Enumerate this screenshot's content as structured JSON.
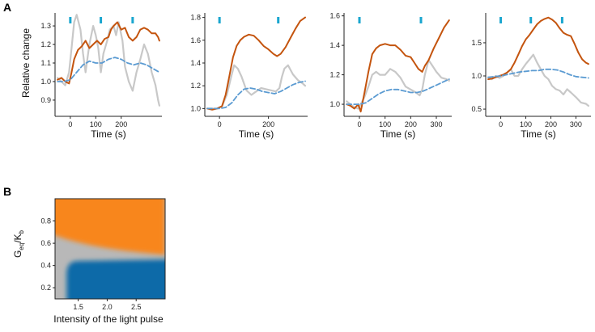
{
  "panel_a_letter": "A",
  "panel_b_letter": "B",
  "colors": {
    "measured": "#c4540e",
    "gray": "#c8c8c8",
    "model": "#5b9bd2",
    "pulse": "#1aa6cf",
    "heat_high": "#f8861c",
    "heat_low": "#0f6aa8",
    "heat_mid": "#b8b8b8"
  },
  "chart_data": [
    {
      "type": "line",
      "ylabel": "Relative change",
      "xlabel": "Time (s)",
      "xlim": [
        -60,
        360
      ],
      "ylim": [
        0.83,
        1.37
      ],
      "xticks": [
        0,
        100,
        200
      ],
      "yticks": [
        0.9,
        1.0,
        1.1,
        1.2,
        1.3
      ],
      "ytick_labels": [
        "0.9",
        "1.0",
        "1.1",
        "1.2",
        "1.3"
      ],
      "pulses": [
        0,
        120,
        245
      ],
      "series": [
        {
          "role": "gray",
          "x": [
            -50,
            -35,
            -20,
            -5,
            5,
            15,
            25,
            40,
            50,
            60,
            75,
            90,
            100,
            110,
            120,
            130,
            145,
            155,
            170,
            180,
            190,
            205,
            215,
            230,
            245,
            260,
            275,
            290,
            305,
            320,
            335,
            345,
            350
          ],
          "y": [
            1.02,
            1.0,
            0.98,
            1.05,
            1.18,
            1.32,
            1.36,
            1.28,
            1.15,
            1.05,
            1.2,
            1.3,
            1.25,
            1.18,
            1.05,
            1.15,
            1.22,
            1.28,
            1.3,
            1.25,
            1.32,
            1.22,
            1.08,
            1.0,
            0.95,
            1.05,
            1.12,
            1.2,
            1.15,
            1.05,
            0.98,
            0.9,
            0.87
          ]
        },
        {
          "role": "measured",
          "x": [
            -50,
            -35,
            -20,
            -5,
            5,
            15,
            30,
            45,
            60,
            75,
            90,
            105,
            120,
            135,
            150,
            160,
            170,
            185,
            200,
            215,
            230,
            245,
            260,
            275,
            290,
            305,
            320,
            335,
            345,
            350
          ],
          "y": [
            1.01,
            1.02,
            1.0,
            0.99,
            1.05,
            1.12,
            1.17,
            1.19,
            1.22,
            1.18,
            1.2,
            1.22,
            1.2,
            1.23,
            1.24,
            1.28,
            1.3,
            1.32,
            1.28,
            1.29,
            1.24,
            1.22,
            1.24,
            1.28,
            1.29,
            1.28,
            1.26,
            1.26,
            1.24,
            1.22
          ]
        },
        {
          "role": "model",
          "x": [
            -50,
            -25,
            0,
            25,
            50,
            75,
            100,
            125,
            150,
            175,
            200,
            225,
            250,
            275,
            300,
            325,
            350
          ],
          "y": [
            1.0,
            1.0,
            1.01,
            1.05,
            1.09,
            1.11,
            1.1,
            1.1,
            1.12,
            1.13,
            1.12,
            1.1,
            1.09,
            1.1,
            1.09,
            1.07,
            1.05
          ]
        }
      ]
    },
    {
      "type": "line",
      "xlabel": "Time (s)",
      "xlim": [
        -60,
        360
      ],
      "ylim": [
        0.96,
        1.84
      ],
      "xticks": [
        0,
        200
      ],
      "yticks": [
        1.0,
        1.2,
        1.4,
        1.6,
        1.8
      ],
      "ytick_labels": [
        "1.0",
        "1.2",
        "1.4",
        "1.6",
        "1.8"
      ],
      "pulses": [
        0,
        240
      ],
      "series": [
        {
          "role": "gray",
          "x": [
            -50,
            -30,
            -10,
            10,
            30,
            50,
            60,
            75,
            90,
            110,
            130,
            150,
            170,
            190,
            210,
            230,
            245,
            255,
            265,
            280,
            300,
            320,
            340,
            350
          ],
          "y": [
            1.0,
            1.0,
            1.0,
            1.02,
            1.12,
            1.3,
            1.38,
            1.35,
            1.28,
            1.16,
            1.12,
            1.15,
            1.18,
            1.17,
            1.16,
            1.15,
            1.18,
            1.28,
            1.35,
            1.38,
            1.3,
            1.25,
            1.22,
            1.2
          ]
        },
        {
          "role": "measured",
          "x": [
            -50,
            -30,
            -10,
            10,
            25,
            40,
            55,
            70,
            85,
            100,
            120,
            140,
            160,
            180,
            200,
            220,
            235,
            250,
            270,
            290,
            310,
            330,
            350
          ],
          "y": [
            1.0,
            0.99,
            1.0,
            1.02,
            1.12,
            1.28,
            1.45,
            1.55,
            1.6,
            1.63,
            1.65,
            1.64,
            1.6,
            1.55,
            1.52,
            1.48,
            1.46,
            1.48,
            1.54,
            1.62,
            1.7,
            1.77,
            1.8
          ]
        },
        {
          "role": "model",
          "x": [
            -50,
            -25,
            0,
            25,
            50,
            75,
            100,
            125,
            150,
            175,
            200,
            225,
            250,
            275,
            300,
            325,
            350
          ],
          "y": [
            1.0,
            1.0,
            1.0,
            1.01,
            1.05,
            1.12,
            1.17,
            1.18,
            1.17,
            1.15,
            1.14,
            1.13,
            1.15,
            1.18,
            1.21,
            1.23,
            1.24
          ]
        }
      ]
    },
    {
      "type": "line",
      "xlabel": "Time (s)",
      "xlim": [
        -60,
        360
      ],
      "ylim": [
        0.94,
        1.62
      ],
      "xticks": [
        0,
        100,
        200,
        300
      ],
      "yticks": [
        1.0,
        1.2,
        1.4,
        1.6
      ],
      "ytick_labels": [
        "1.0",
        "1.2",
        "1.4",
        "1.6"
      ],
      "pulses": [
        0,
        240
      ],
      "series": [
        {
          "role": "gray",
          "x": [
            -50,
            -35,
            -20,
            -5,
            5,
            20,
            35,
            50,
            65,
            80,
            100,
            120,
            140,
            160,
            180,
            200,
            220,
            235,
            245,
            255,
            270,
            285,
            300,
            320,
            340,
            350
          ],
          "y": [
            1.02,
            1.0,
            0.98,
            0.97,
            1.0,
            1.05,
            1.12,
            1.2,
            1.22,
            1.2,
            1.2,
            1.24,
            1.22,
            1.18,
            1.12,
            1.1,
            1.08,
            1.06,
            1.1,
            1.2,
            1.3,
            1.26,
            1.22,
            1.18,
            1.17,
            1.16
          ]
        },
        {
          "role": "measured",
          "x": [
            -50,
            -35,
            -20,
            -5,
            5,
            20,
            35,
            50,
            65,
            80,
            100,
            120,
            140,
            160,
            180,
            200,
            215,
            230,
            245,
            255,
            270,
            290,
            310,
            330,
            350
          ],
          "y": [
            1.0,
            0.99,
            0.97,
            1.0,
            0.95,
            1.08,
            1.22,
            1.34,
            1.38,
            1.4,
            1.41,
            1.4,
            1.4,
            1.37,
            1.33,
            1.32,
            1.28,
            1.24,
            1.22,
            1.26,
            1.3,
            1.38,
            1.45,
            1.52,
            1.57
          ]
        },
        {
          "role": "model",
          "x": [
            -50,
            -25,
            0,
            25,
            50,
            75,
            100,
            125,
            150,
            175,
            200,
            225,
            250,
            275,
            300,
            325,
            350
          ],
          "y": [
            1.0,
            1.0,
            1.0,
            1.01,
            1.04,
            1.07,
            1.09,
            1.1,
            1.1,
            1.09,
            1.08,
            1.08,
            1.09,
            1.11,
            1.13,
            1.15,
            1.17
          ]
        }
      ]
    },
    {
      "type": "line",
      "xlabel": "Time (s)",
      "xlim": [
        -60,
        360
      ],
      "ylim": [
        0.44,
        1.95
      ],
      "xticks": [
        0,
        100,
        200,
        300
      ],
      "yticks": [
        0.5,
        1.0,
        1.5
      ],
      "ytick_labels": [
        "0.5",
        "1.0",
        "1.5"
      ],
      "pulses": [
        0,
        120,
        245
      ],
      "series": [
        {
          "role": "gray",
          "x": [
            -50,
            -35,
            -20,
            -5,
            10,
            25,
            40,
            55,
            70,
            85,
            100,
            115,
            130,
            145,
            160,
            175,
            190,
            205,
            220,
            235,
            250,
            265,
            280,
            300,
            320,
            340,
            350
          ],
          "y": [
            0.98,
            0.95,
            1.0,
            0.97,
            1.0,
            1.05,
            1.1,
            1.0,
            1.0,
            1.1,
            1.18,
            1.25,
            1.32,
            1.2,
            1.1,
            1.0,
            0.95,
            0.85,
            0.8,
            0.78,
            0.72,
            0.8,
            0.75,
            0.68,
            0.6,
            0.58,
            0.55
          ]
        },
        {
          "role": "measured",
          "x": [
            -50,
            -35,
            -20,
            -5,
            10,
            25,
            40,
            55,
            70,
            85,
            100,
            115,
            130,
            145,
            160,
            175,
            190,
            205,
            220,
            235,
            250,
            265,
            280,
            295,
            310,
            325,
            340,
            350
          ],
          "y": [
            0.95,
            0.96,
            0.98,
            1.0,
            1.02,
            1.05,
            1.1,
            1.2,
            1.32,
            1.45,
            1.55,
            1.62,
            1.7,
            1.78,
            1.83,
            1.86,
            1.88,
            1.85,
            1.8,
            1.72,
            1.65,
            1.62,
            1.6,
            1.48,
            1.35,
            1.25,
            1.2,
            1.18
          ]
        },
        {
          "role": "model",
          "x": [
            -50,
            -25,
            0,
            25,
            50,
            75,
            100,
            125,
            150,
            175,
            200,
            225,
            250,
            275,
            300,
            325,
            350
          ],
          "y": [
            0.98,
            0.99,
            1.0,
            1.02,
            1.04,
            1.06,
            1.07,
            1.08,
            1.08,
            1.1,
            1.1,
            1.09,
            1.06,
            1.02,
            0.99,
            0.98,
            0.97
          ]
        }
      ]
    },
    {
      "type": "heatmap",
      "xlabel": "Intensity of the light pulse",
      "ylabel_main": "G",
      "ylabel_sub1": "eq",
      "ylabel_mid": "/K",
      "ylabel_sub2": "b",
      "xlim": [
        1.1,
        3.0
      ],
      "ylim": [
        0.1,
        1.0
      ],
      "xticks": [
        1.5,
        2.0,
        2.5
      ],
      "xtick_labels": [
        "1.5",
        "2.0",
        "2.5"
      ],
      "yticks": [
        0.2,
        0.4,
        0.6,
        0.8
      ],
      "ytick_labels": [
        "0.2",
        "0.4",
        "0.6",
        "0.8"
      ],
      "regions": [
        "high",
        "intermediate",
        "low"
      ]
    }
  ]
}
